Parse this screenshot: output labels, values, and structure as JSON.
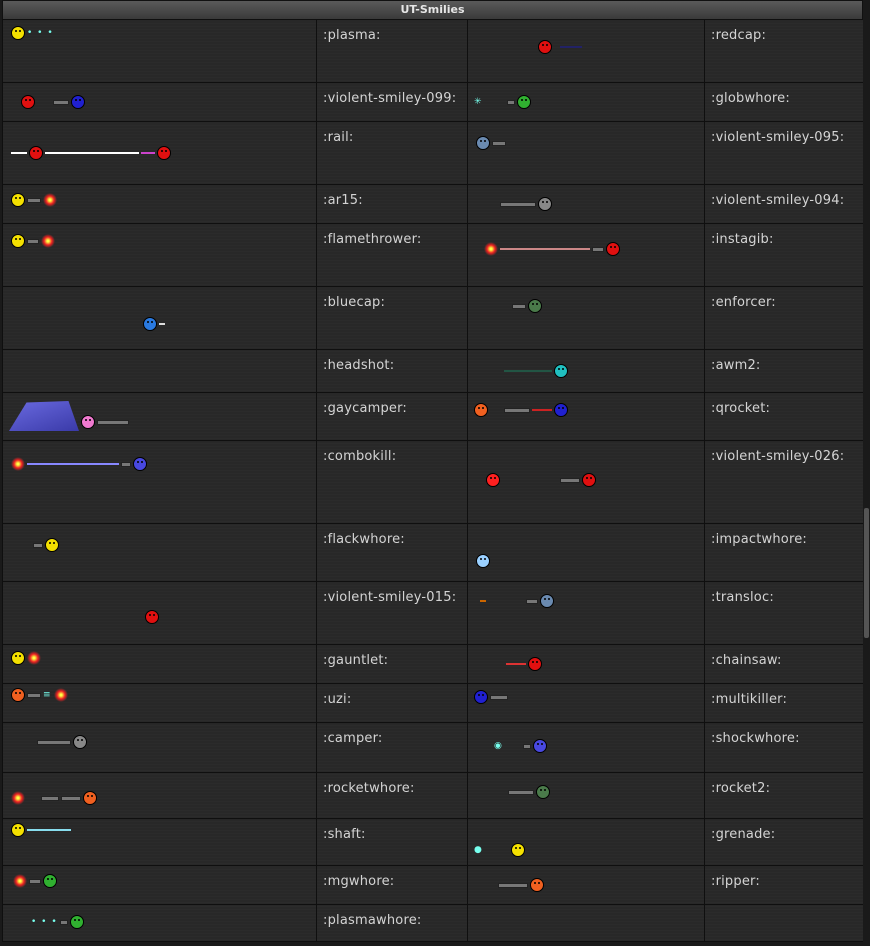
{
  "header": {
    "title": "UT-Smilies"
  },
  "colors": {
    "yellow": "#f4e000",
    "red": "#e01010",
    "blue": "#2020d0",
    "green": "#30b030",
    "gray": "#888888",
    "orange": "#f06020",
    "pink": "#f07ad0",
    "lightblue": "#6ab4ff",
    "teal": "#20c0c0"
  },
  "rows": [
    {
      "left_code": ":plasma:",
      "right_code": ":redcap:"
    },
    {
      "left_code": ":violent-smiley-099:",
      "right_code": ":globwhore:"
    },
    {
      "left_code": ":rail:",
      "right_code": ":violent-smiley-095:"
    },
    {
      "left_code": ":ar15:",
      "right_code": ":violent-smiley-094:"
    },
    {
      "left_code": ":flamethrower:",
      "right_code": ":instagib:"
    },
    {
      "left_code": ":bluecap:",
      "right_code": ":enforcer:"
    },
    {
      "left_code": ":headshot:",
      "right_code": ":awm2:"
    },
    {
      "left_code": ":gaycamper:",
      "right_code": ":qrocket:"
    },
    {
      "left_code": ":combokill:",
      "right_code": ":violent-smiley-026:"
    },
    {
      "left_code": ":flackwhore:",
      "right_code": ":impactwhore:"
    },
    {
      "left_code": ":violent-smiley-015:",
      "right_code": ":transloc:"
    },
    {
      "left_code": ":gauntlet:",
      "right_code": ":chainsaw:"
    },
    {
      "left_code": ":uzi:",
      "right_code": ":multikiller:"
    },
    {
      "left_code": ":camper:",
      "right_code": ":shockwhore:"
    },
    {
      "left_code": ":rocketwhore:",
      "right_code": ":rocket2:"
    },
    {
      "left_code": ":shaft:",
      "right_code": ":grenade:"
    },
    {
      "left_code": ":mgwhore:",
      "right_code": ":ripper:"
    },
    {
      "left_code": ":plasmawhore:",
      "right_code": ""
    }
  ]
}
